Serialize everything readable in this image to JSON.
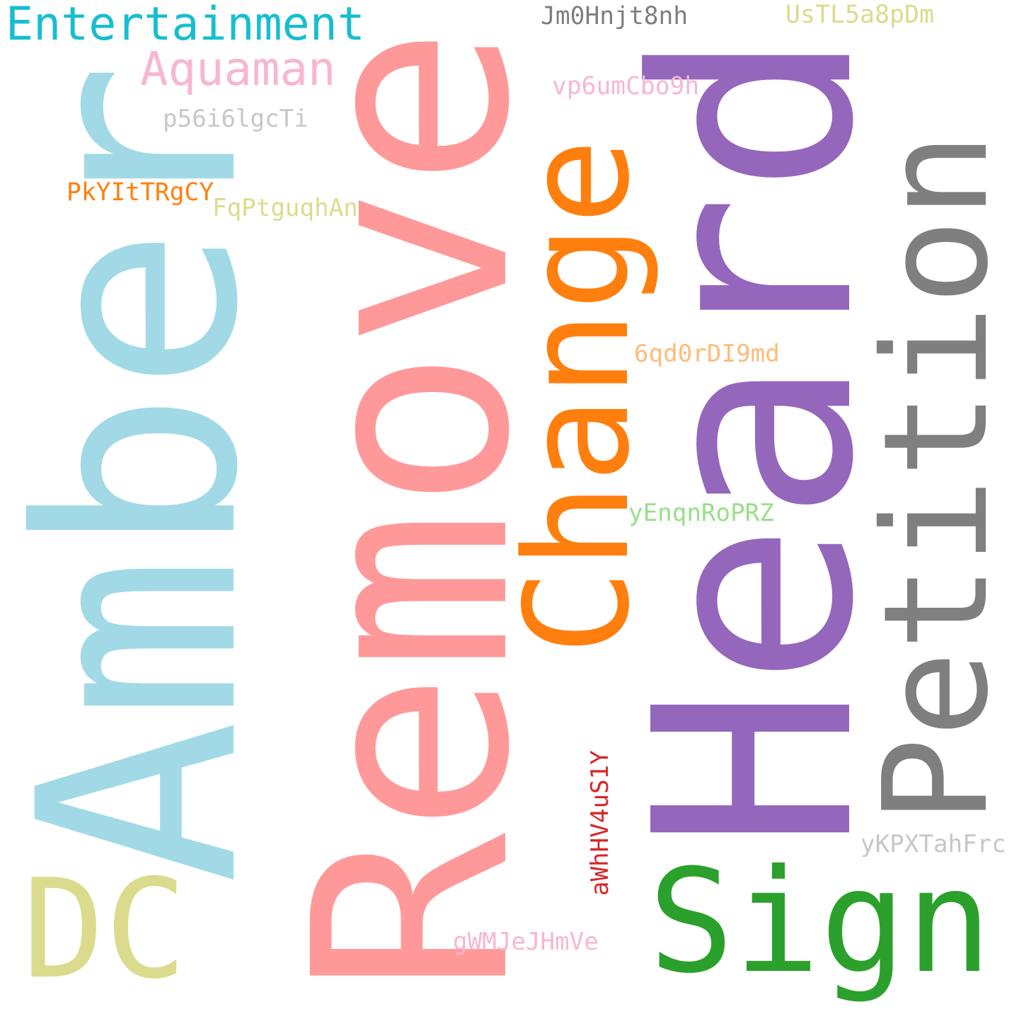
{
  "words": [
    {
      "key": "amber",
      "text": "Amber",
      "color": "#a1dae6",
      "orientation": "vertical"
    },
    {
      "key": "remove",
      "text": "Remove",
      "color": "#ff9999",
      "orientation": "vertical"
    },
    {
      "key": "heard",
      "text": "Heard",
      "color": "#9467bd",
      "orientation": "vertical"
    },
    {
      "key": "change",
      "text": "Change",
      "color": "#ff7f0e",
      "orientation": "vertical"
    },
    {
      "key": "petition",
      "text": "Petition",
      "color": "#7f7f7f",
      "orientation": "vertical"
    },
    {
      "key": "sign",
      "text": "Sign",
      "color": "#2ca02c",
      "orientation": "horizontal"
    },
    {
      "key": "dc",
      "text": "DC",
      "color": "#dbdb8d",
      "orientation": "horizontal"
    },
    {
      "key": "entertainment",
      "text": "Entertainment",
      "color": "#17becf",
      "orientation": "horizontal"
    },
    {
      "key": "aquaman",
      "text": "Aquaman",
      "color": "#f7b6d2",
      "orientation": "horizontal"
    },
    {
      "key": "jm0hnjt8nh",
      "text": "Jm0Hnjt8nh",
      "color": "#7f7f7f",
      "orientation": "horizontal"
    },
    {
      "key": "ustl5a8pdm",
      "text": "UsTL5a8pDm",
      "color": "#dbdb8d",
      "orientation": "horizontal"
    },
    {
      "key": "vp6umcbo9h",
      "text": "vp6umCbo9h",
      "color": "#f7b6d2",
      "orientation": "horizontal"
    },
    {
      "key": "p56i6lgcti",
      "text": "p56i6lgcTi",
      "color": "#c7c7c7",
      "orientation": "horizontal"
    },
    {
      "key": "pkyittrgcy",
      "text": "PkYItTRgCY",
      "color": "#ff7f0e",
      "orientation": "horizontal"
    },
    {
      "key": "fqptguqhan",
      "text": "FqPtguqhAn",
      "color": "#dbdb8d",
      "orientation": "horizontal"
    },
    {
      "key": "6qd0rdi9md",
      "text": "6qd0rDI9md",
      "color": "#ffbb78",
      "orientation": "horizontal"
    },
    {
      "key": "yenqnroprz",
      "text": "yEnqnRoPRZ",
      "color": "#98df8a",
      "orientation": "horizontal"
    },
    {
      "key": "awhhv4us1y",
      "text": "aWhHV4uS1Y",
      "color": "#d62728",
      "orientation": "vertical"
    },
    {
      "key": "ykpxtahfrc",
      "text": "yKPXTahFrc",
      "color": "#c7c7c7",
      "orientation": "horizontal"
    },
    {
      "key": "gwmjejhmve",
      "text": "gWMJeJHmVe",
      "color": "#f7b6d2",
      "orientation": "horizontal"
    }
  ]
}
